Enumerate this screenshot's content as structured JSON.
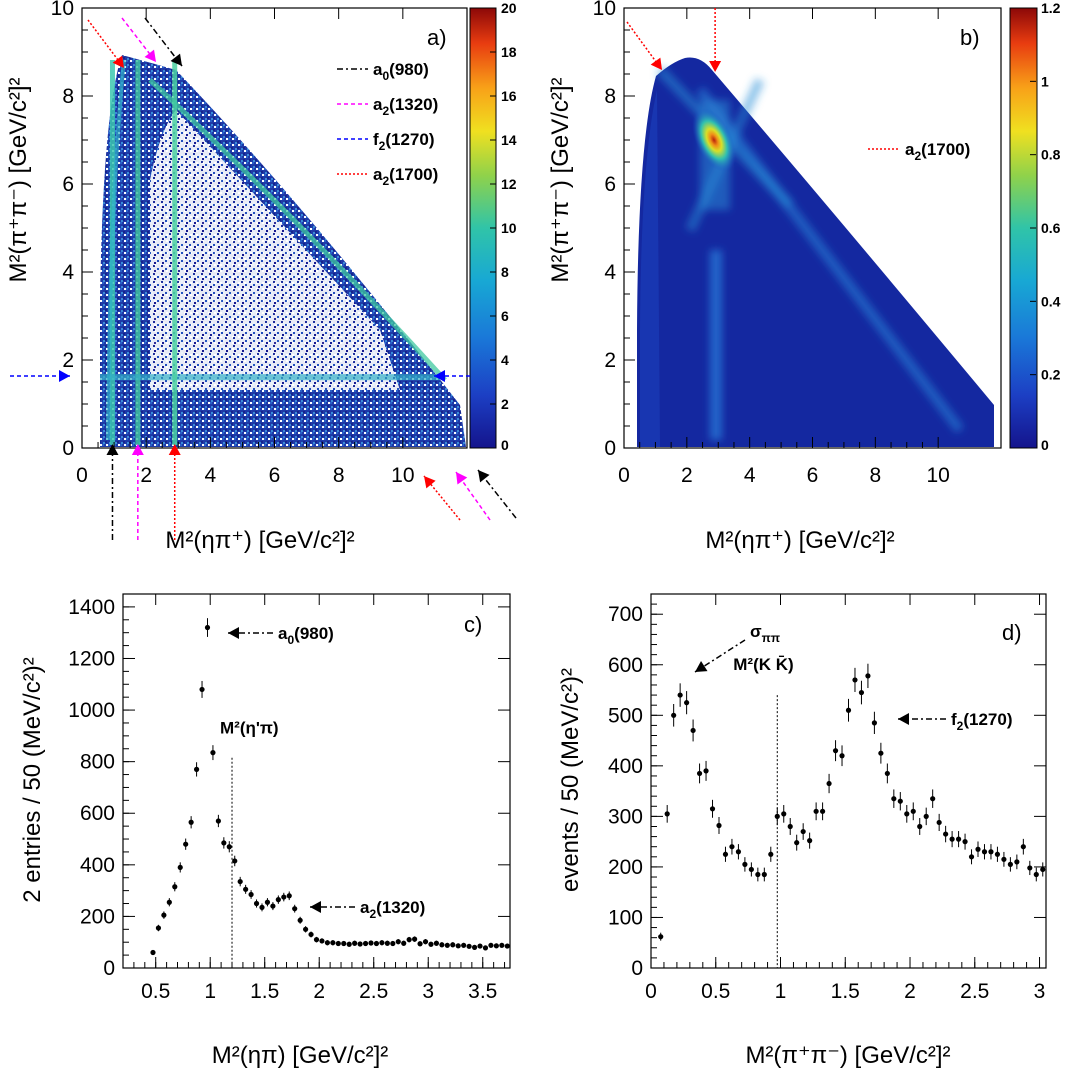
{
  "chart_data": [
    {
      "panel": "a)",
      "type": "heatmap",
      "xlabel": "M²(ηπ⁺) [GeV/c²]²",
      "ylabel": "M²(π⁺π⁻) [GeV/c²]²",
      "xlim": [
        0,
        12
      ],
      "ylim": [
        0,
        10
      ],
      "xticks": [
        "0",
        "2",
        "4",
        "6",
        "8",
        "10"
      ],
      "yticks": [
        "0",
        "2",
        "4",
        "6",
        "8",
        "10"
      ],
      "zlim": [
        0,
        20
      ],
      "colorbar_ticks": [
        "0",
        "2",
        "4",
        "6",
        "8",
        "10",
        "12",
        "14",
        "16",
        "18",
        "20"
      ],
      "bands": [
        {
          "axis": "x",
          "value": 0.95,
          "label": "a0(980)"
        },
        {
          "axis": "x",
          "value": 1.74,
          "label": "a2(1320)"
        },
        {
          "axis": "y",
          "value": 1.61,
          "label": "f2(1270)"
        },
        {
          "axis": "x",
          "value": 2.89,
          "label": "a2(1700)"
        }
      ],
      "legend": [
        {
          "base": "a",
          "sub": "0",
          "rest": "(980)",
          "color": "#000000"
        },
        {
          "base": "a",
          "sub": "2",
          "rest": "(1320)",
          "color": "#ff00ff"
        },
        {
          "base": "f",
          "sub": "2",
          "rest": "(1270)",
          "color": "#0000ff"
        },
        {
          "base": "a",
          "sub": "2",
          "rest": "(1700)",
          "color": "#ff0000"
        }
      ]
    },
    {
      "panel": "b)",
      "type": "heatmap",
      "xlabel": "M²(ηπ⁺) [GeV/c²]²",
      "ylabel": "M²(π⁺π⁻) [GeV/c²]²",
      "xlim": [
        0,
        12
      ],
      "ylim": [
        0,
        10
      ],
      "xticks": [
        "0",
        "2",
        "4",
        "6",
        "8",
        "10"
      ],
      "yticks": [
        "0",
        "2",
        "4",
        "6",
        "8",
        "10"
      ],
      "zlim": [
        0,
        1.2
      ],
      "colorbar_ticks": [
        "0",
        "0.2",
        "0.4",
        "0.6",
        "0.8",
        "1",
        "1.2"
      ],
      "peak": {
        "x": 2.9,
        "y": 6.9
      },
      "legend": [
        {
          "base": "a",
          "sub": "2",
          "rest": "(1700)",
          "color": "#ff0000"
        }
      ]
    },
    {
      "panel": "c)",
      "type": "scatter",
      "xlabel": "M²(ηπ) [GeV/c²]²",
      "ylabel": "2 entries / 50 (MeV/c²)²",
      "xlim": [
        0.2,
        3.75
      ],
      "ylim": [
        0,
        1450
      ],
      "xticks": [
        "0.5",
        "1",
        "1.5",
        "2",
        "2.5",
        "3",
        "3.5"
      ],
      "yticks": [
        "0",
        "200",
        "400",
        "600",
        "800",
        "1000",
        "1200",
        "1400"
      ],
      "threshold": {
        "x": 1.2,
        "label": "M²(η'π)"
      },
      "annotations": [
        {
          "base": "a",
          "sub": "0",
          "rest": "(980)"
        },
        {
          "base": "a",
          "sub": "2",
          "rest": "(1320)"
        }
      ],
      "x": [
        0.475,
        0.525,
        0.575,
        0.625,
        0.675,
        0.725,
        0.775,
        0.825,
        0.875,
        0.925,
        0.975,
        1.025,
        1.075,
        1.125,
        1.175,
        1.225,
        1.275,
        1.325,
        1.375,
        1.425,
        1.475,
        1.525,
        1.575,
        1.625,
        1.675,
        1.725,
        1.775,
        1.825,
        1.875,
        1.925,
        1.975,
        2.025,
        2.075,
        2.125,
        2.175,
        2.225,
        2.275,
        2.325,
        2.375,
        2.425,
        2.475,
        2.525,
        2.575,
        2.625,
        2.675,
        2.725,
        2.775,
        2.825,
        2.875,
        2.925,
        2.975,
        3.025,
        3.075,
        3.125,
        3.175,
        3.225,
        3.275,
        3.325,
        3.375,
        3.425,
        3.475,
        3.525,
        3.575,
        3.625,
        3.675,
        3.725
      ],
      "y": [
        60,
        155,
        205,
        255,
        315,
        390,
        480,
        565,
        770,
        1080,
        1320,
        835,
        570,
        485,
        470,
        415,
        335,
        305,
        285,
        250,
        235,
        255,
        240,
        265,
        275,
        280,
        230,
        185,
        150,
        130,
        110,
        105,
        98,
        98,
        95,
        95,
        92,
        96,
        93,
        95,
        97,
        95,
        98,
        96,
        95,
        102,
        96,
        110,
        112,
        94,
        102,
        92,
        96,
        90,
        88,
        90,
        86,
        88,
        84,
        80,
        85,
        78,
        88,
        86,
        88,
        85
      ]
    },
    {
      "panel": "d)",
      "type": "scatter",
      "xlabel": "M²(π⁺π⁻) [GeV/c²]²",
      "ylabel": "events / 50 (MeV/c²)²",
      "xlim": [
        0,
        3.05
      ],
      "ylim": [
        0,
        740
      ],
      "xticks": [
        "0",
        "0.5",
        "1",
        "1.5",
        "2",
        "2.5",
        "3"
      ],
      "yticks": [
        "0",
        "100",
        "200",
        "300",
        "400",
        "500",
        "600",
        "700"
      ],
      "threshold": {
        "x": 0.975,
        "label": "M²(K K̄)"
      },
      "annotations": [
        {
          "base": "σ",
          "sub": "ππ",
          "rest": ""
        },
        {
          "base": "f",
          "sub": "2",
          "rest": "(1270)"
        }
      ],
      "x": [
        0.075,
        0.125,
        0.175,
        0.225,
        0.275,
        0.325,
        0.375,
        0.425,
        0.475,
        0.525,
        0.575,
        0.625,
        0.675,
        0.725,
        0.775,
        0.825,
        0.875,
        0.925,
        0.975,
        1.025,
        1.075,
        1.125,
        1.175,
        1.225,
        1.275,
        1.325,
        1.375,
        1.425,
        1.475,
        1.525,
        1.575,
        1.625,
        1.675,
        1.725,
        1.775,
        1.825,
        1.875,
        1.925,
        1.975,
        2.025,
        2.075,
        2.125,
        2.175,
        2.225,
        2.275,
        2.325,
        2.375,
        2.425,
        2.475,
        2.525,
        2.575,
        2.625,
        2.675,
        2.725,
        2.775,
        2.825,
        2.875,
        2.925,
        2.975,
        3.025
      ],
      "y": [
        62,
        305,
        500,
        540,
        525,
        470,
        385,
        390,
        315,
        282,
        225,
        240,
        230,
        205,
        195,
        185,
        185,
        225,
        300,
        305,
        280,
        248,
        270,
        252,
        310,
        310,
        365,
        430,
        420,
        510,
        570,
        545,
        578,
        485,
        425,
        385,
        335,
        330,
        305,
        310,
        280,
        300,
        335,
        288,
        265,
        255,
        255,
        250,
        220,
        235,
        230,
        230,
        225,
        215,
        205,
        210,
        240,
        198,
        185,
        195
      ]
    }
  ]
}
